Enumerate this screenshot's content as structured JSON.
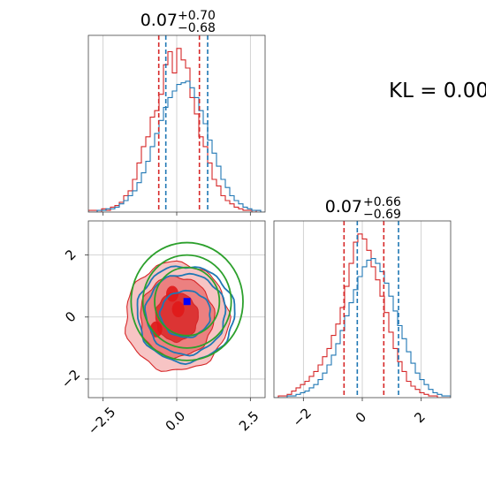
{
  "chart_data": [
    {
      "type": "histogram",
      "panel": "marginal-x",
      "title": {
        "main": "0.07",
        "sup": "+0.70",
        "sub": "−0.68"
      },
      "xlim": [
        -3.0,
        3.0
      ],
      "grid": true,
      "series": [
        {
          "color": "#d62728",
          "quantiles": [
            -0.61,
            0.77
          ],
          "bin_edges": [
            -3.0,
            -2.85,
            -2.7,
            -2.55,
            -2.4,
            -2.25,
            -2.1,
            -1.95,
            -1.8,
            -1.65,
            -1.5,
            -1.35,
            -1.2,
            -1.05,
            -0.9,
            -0.75,
            -0.6,
            -0.45,
            -0.3,
            -0.15,
            0.0,
            0.15,
            0.3,
            0.45,
            0.6,
            0.75,
            0.9,
            1.05,
            1.2,
            1.35,
            1.5,
            1.65,
            1.8,
            1.95,
            2.1,
            2.25,
            2.4,
            2.55,
            2.7,
            2.85,
            3.0
          ],
          "counts": [
            0.01,
            0.01,
            0.0,
            0.02,
            0.01,
            0.03,
            0.04,
            0.06,
            0.1,
            0.13,
            0.2,
            0.3,
            0.4,
            0.46,
            0.58,
            0.62,
            0.72,
            0.9,
            0.98,
            0.85,
            1.0,
            0.93,
            0.88,
            0.7,
            0.6,
            0.46,
            0.4,
            0.3,
            0.2,
            0.16,
            0.1,
            0.07,
            0.05,
            0.03,
            0.02,
            0.01,
            0.01,
            0.0,
            0.01,
            0.0
          ]
        },
        {
          "color": "#1f77b4",
          "quantiles": [
            -0.37,
            1.05
          ],
          "bin_edges": [
            -3.0,
            -2.85,
            -2.7,
            -2.55,
            -2.4,
            -2.25,
            -2.1,
            -1.95,
            -1.8,
            -1.65,
            -1.5,
            -1.35,
            -1.2,
            -1.05,
            -0.9,
            -0.75,
            -0.6,
            -0.45,
            -0.3,
            -0.15,
            0.0,
            0.15,
            0.3,
            0.45,
            0.6,
            0.75,
            0.9,
            1.05,
            1.2,
            1.35,
            1.5,
            1.65,
            1.8,
            1.95,
            2.1,
            2.25,
            2.4,
            2.55,
            2.7,
            2.85,
            3.0
          ],
          "counts": [
            0.0,
            0.0,
            0.01,
            0.01,
            0.02,
            0.02,
            0.03,
            0.05,
            0.07,
            0.1,
            0.13,
            0.18,
            0.24,
            0.31,
            0.4,
            0.48,
            0.56,
            0.64,
            0.7,
            0.74,
            0.78,
            0.79,
            0.8,
            0.76,
            0.7,
            0.62,
            0.54,
            0.44,
            0.36,
            0.28,
            0.2,
            0.15,
            0.1,
            0.07,
            0.05,
            0.03,
            0.02,
            0.01,
            0.01,
            0.0
          ]
        }
      ]
    },
    {
      "type": "histogram",
      "panel": "marginal-y",
      "title": {
        "main": "0.07",
        "sup": "+0.66",
        "sub": "−0.69"
      },
      "xlim": [
        -3.0,
        3.0
      ],
      "xticks": [
        -2,
        0,
        2
      ],
      "xtick_labels": [
        "−2",
        "0",
        "2"
      ],
      "grid": true,
      "series": [
        {
          "color": "#d62728",
          "quantiles": [
            -0.62,
            0.73
          ],
          "bin_edges": [
            -3.0,
            -2.85,
            -2.7,
            -2.55,
            -2.4,
            -2.25,
            -2.1,
            -1.95,
            -1.8,
            -1.65,
            -1.5,
            -1.35,
            -1.2,
            -1.05,
            -0.9,
            -0.75,
            -0.6,
            -0.45,
            -0.3,
            -0.15,
            0.0,
            0.15,
            0.3,
            0.45,
            0.6,
            0.75,
            0.9,
            1.05,
            1.2,
            1.35,
            1.5,
            1.65,
            1.8,
            1.95,
            2.1,
            2.25,
            2.4,
            2.55,
            2.7,
            2.85,
            3.0
          ],
          "counts": [
            0.0,
            0.01,
            0.01,
            0.02,
            0.04,
            0.06,
            0.08,
            0.1,
            0.13,
            0.16,
            0.2,
            0.25,
            0.3,
            0.38,
            0.45,
            0.55,
            0.68,
            0.82,
            0.95,
            1.0,
            0.97,
            0.9,
            0.8,
            0.72,
            0.62,
            0.52,
            0.4,
            0.3,
            0.22,
            0.16,
            0.1,
            0.07,
            0.05,
            0.03,
            0.02,
            0.01,
            0.01,
            0.0,
            0.0,
            0.0
          ]
        },
        {
          "color": "#1f77b4",
          "quantiles": [
            -0.17,
            1.23
          ],
          "bin_edges": [
            -3.0,
            -2.85,
            -2.7,
            -2.55,
            -2.4,
            -2.25,
            -2.1,
            -1.95,
            -1.8,
            -1.65,
            -1.5,
            -1.35,
            -1.2,
            -1.05,
            -0.9,
            -0.75,
            -0.6,
            -0.45,
            -0.3,
            -0.15,
            0.0,
            0.15,
            0.3,
            0.45,
            0.6,
            0.75,
            0.9,
            1.05,
            1.2,
            1.35,
            1.5,
            1.65,
            1.8,
            1.95,
            2.1,
            2.25,
            2.4,
            2.55,
            2.7,
            2.85,
            3.0
          ],
          "counts": [
            0.0,
            0.0,
            0.0,
            0.01,
            0.01,
            0.02,
            0.03,
            0.04,
            0.06,
            0.08,
            0.11,
            0.15,
            0.2,
            0.26,
            0.33,
            0.41,
            0.5,
            0.58,
            0.66,
            0.74,
            0.8,
            0.84,
            0.85,
            0.82,
            0.77,
            0.7,
            0.62,
            0.53,
            0.44,
            0.36,
            0.28,
            0.21,
            0.15,
            0.11,
            0.08,
            0.05,
            0.03,
            0.02,
            0.01,
            0.01
          ]
        }
      ]
    },
    {
      "type": "contour",
      "panel": "joint",
      "xlim": [
        -3.0,
        3.0
      ],
      "ylim": [
        -2.6,
        3.1
      ],
      "xticks": [
        -2.5,
        0.0,
        2.5
      ],
      "xtick_labels": [
        "−2.5",
        "0.0",
        "2.5"
      ],
      "yticks": [
        -2,
        0,
        2
      ],
      "ytick_labels": [
        "−2",
        "0",
        "2"
      ],
      "grid": true,
      "marker": {
        "x": 0.35,
        "y": 0.5,
        "color": "#0000ff",
        "shape": "square"
      },
      "series": [
        {
          "color": "#d62728",
          "style": "filled-contours",
          "center": [
            0.0,
            0.0
          ],
          "levels": [
            {
              "rx": 1.75,
              "ry": 1.75,
              "fill": "#f7c4c4"
            },
            {
              "rx": 1.25,
              "ry": 1.3,
              "fill": "#ec8080"
            },
            {
              "rx": 0.72,
              "ry": 0.78,
              "fill": "#dc3434"
            }
          ],
          "highlights": [
            [
              -0.7,
              -0.4
            ],
            [
              -0.15,
              0.75
            ],
            [
              0.05,
              0.25
            ]
          ]
        },
        {
          "color": "#1f77b4",
          "style": "line-contours",
          "center": [
            0.3,
            0.1
          ],
          "levels": [
            {
              "rx": 1.65,
              "ry": 1.55
            },
            {
              "rx": 1.35,
              "ry": 1.3
            },
            {
              "rx": 0.85,
              "ry": 0.75
            }
          ]
        },
        {
          "color": "#2ca02c",
          "style": "true-contours",
          "center": [
            0.35,
            0.5
          ],
          "levels": [
            {
              "rx": 1.9,
              "ry": 1.9
            },
            {
              "rx": 1.5,
              "ry": 1.5
            },
            {
              "rx": 1.1,
              "ry": 1.1
            }
          ]
        }
      ]
    }
  ],
  "annotation": {
    "text": "KL = 0.00"
  }
}
